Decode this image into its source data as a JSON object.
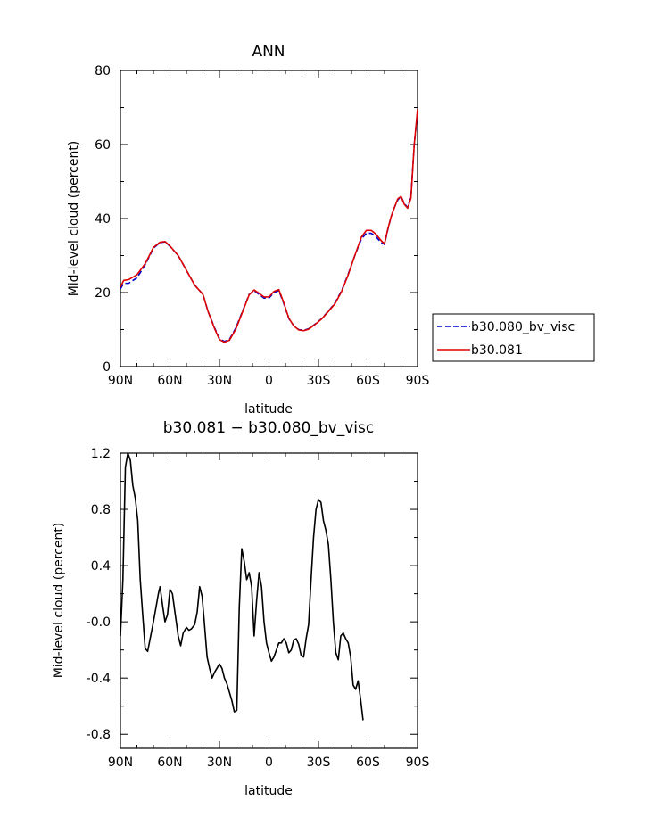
{
  "chart_data": [
    {
      "type": "line",
      "title": "ANN",
      "xlabel": "latitude",
      "ylabel": "Mid-level cloud (percent)",
      "x_ticks": [
        "90N",
        "60N",
        "30N",
        "0",
        "30S",
        "60S",
        "90S"
      ],
      "y_ticks": [
        "0",
        "20",
        "40",
        "60",
        "80"
      ],
      "ylim": [
        0,
        80
      ],
      "legend_position": "right",
      "series": [
        {
          "name": "b30.080_bv_visc",
          "color": "#0000cc",
          "dash": "dashed",
          "points": [
            [
              90,
              21
            ],
            [
              88,
              22.5
            ],
            [
              85,
              22.5
            ],
            [
              80,
              24
            ],
            [
              75,
              27.5
            ],
            [
              70,
              32
            ],
            [
              66,
              33.5
            ],
            [
              63,
              33.7
            ],
            [
              60,
              32.5
            ],
            [
              55,
              30
            ],
            [
              50,
              26
            ],
            [
              45,
              22
            ],
            [
              40,
              19.5
            ],
            [
              37,
              15
            ],
            [
              33,
              10.5
            ],
            [
              30,
              7.5
            ],
            [
              27,
              6.8
            ],
            [
              24,
              7.3
            ],
            [
              20,
              10.5
            ],
            [
              16,
              15
            ],
            [
              12,
              19.5
            ],
            [
              9,
              20.5
            ],
            [
              6,
              19.5
            ],
            [
              3,
              18.5
            ],
            [
              0,
              18.5
            ],
            [
              -3,
              20
            ],
            [
              -6,
              20.5
            ],
            [
              -9,
              17
            ],
            [
              -12,
              13
            ],
            [
              -15,
              11
            ],
            [
              -18,
              10
            ],
            [
              -21,
              9.8
            ],
            [
              -24,
              10.2
            ],
            [
              -28,
              11.5
            ],
            [
              -32,
              13
            ],
            [
              -36,
              15
            ],
            [
              -40,
              17.2
            ],
            [
              -44,
              20.5
            ],
            [
              -48,
              25
            ],
            [
              -52,
              30
            ],
            [
              -56,
              34.5
            ],
            [
              -59,
              36
            ],
            [
              -62,
              36
            ],
            [
              -65,
              35
            ],
            [
              -68,
              33.5
            ],
            [
              -70,
              33
            ],
            [
              -72,
              37
            ],
            [
              -74,
              40.5
            ],
            [
              -76,
              43
            ],
            [
              -78,
              45
            ],
            [
              -80,
              46
            ],
            [
              -82,
              44
            ],
            [
              -84,
              43
            ],
            [
              -86,
              46
            ],
            [
              -88,
              60
            ],
            [
              -90,
              69
            ]
          ]
        },
        {
          "name": "b30.081",
          "color": "#dd0000",
          "dash": "solid",
          "points": [
            [
              90,
              21.5
            ],
            [
              88,
              23.3
            ],
            [
              85,
              23.5
            ],
            [
              80,
              24.8
            ],
            [
              75,
              27.8
            ],
            [
              70,
              32.2
            ],
            [
              66,
              33.6
            ],
            [
              63,
              33.8
            ],
            [
              60,
              32.6
            ],
            [
              55,
              30
            ],
            [
              50,
              26
            ],
            [
              45,
              22
            ],
            [
              40,
              19.5
            ],
            [
              37,
              15
            ],
            [
              33,
              10.3
            ],
            [
              30,
              7.3
            ],
            [
              27,
              6.6
            ],
            [
              24,
              7.1
            ],
            [
              20,
              10.2
            ],
            [
              16,
              14.8
            ],
            [
              12,
              19.4
            ],
            [
              9,
              20.7
            ],
            [
              6,
              19.8
            ],
            [
              3,
              18.8
            ],
            [
              0,
              18.8
            ],
            [
              -3,
              20.3
            ],
            [
              -6,
              20.8
            ],
            [
              -9,
              17.2
            ],
            [
              -12,
              13.1
            ],
            [
              -15,
              11
            ],
            [
              -18,
              9.9
            ],
            [
              -21,
              9.7
            ],
            [
              -24,
              10.1
            ],
            [
              -28,
              11.4
            ],
            [
              -32,
              12.9
            ],
            [
              -36,
              14.9
            ],
            [
              -40,
              17
            ],
            [
              -44,
              20.3
            ],
            [
              -48,
              24.8
            ],
            [
              -52,
              30
            ],
            [
              -56,
              35
            ],
            [
              -59,
              36.8
            ],
            [
              -62,
              36.8
            ],
            [
              -65,
              35.7
            ],
            [
              -68,
              34
            ],
            [
              -70,
              33.2
            ],
            [
              -72,
              37.2
            ],
            [
              -74,
              40.5
            ],
            [
              -76,
              43
            ],
            [
              -78,
              45.3
            ],
            [
              -80,
              46
            ],
            [
              -82,
              43.8
            ],
            [
              -84,
              42.8
            ],
            [
              -86,
              45.5
            ],
            [
              -88,
              60
            ],
            [
              -90,
              69.5
            ]
          ]
        }
      ]
    },
    {
      "type": "line",
      "title": "b30.081 − b30.080_bv_visc",
      "xlabel": "latitude",
      "ylabel": "Mid-level cloud (percent)",
      "x_ticks": [
        "90N",
        "60N",
        "30N",
        "0",
        "30S",
        "60S",
        "90S"
      ],
      "y_ticks": [
        "-0.8",
        "-0.4",
        "-0.0",
        "0.4",
        "0.8",
        "1.2"
      ],
      "ylim": [
        -0.9,
        1.2
      ],
      "series": [
        {
          "color": "#000000",
          "dash": "solid",
          "points": [
            [
              90,
              -0.1
            ],
            [
              88.5,
              0.3
            ],
            [
              87,
              1.1
            ],
            [
              85.5,
              1.2
            ],
            [
              84,
              1.15
            ],
            [
              82.5,
              0.97
            ],
            [
              81,
              0.88
            ],
            [
              79.5,
              0.72
            ],
            [
              78,
              0.3
            ],
            [
              76.5,
              0.05
            ],
            [
              75,
              -0.19
            ],
            [
              73.5,
              -0.21
            ],
            [
              72,
              -0.12
            ],
            [
              70,
              0.0
            ],
            [
              68.5,
              0.1
            ],
            [
              67,
              0.2
            ],
            [
              66,
              0.25
            ],
            [
              64.5,
              0.12
            ],
            [
              63,
              0.0
            ],
            [
              61.5,
              0.05
            ],
            [
              60,
              0.23
            ],
            [
              58.5,
              0.2
            ],
            [
              57,
              0.07
            ],
            [
              55,
              -0.1
            ],
            [
              53.5,
              -0.17
            ],
            [
              52,
              -0.08
            ],
            [
              50,
              -0.04
            ],
            [
              48.5,
              -0.06
            ],
            [
              47,
              -0.05
            ],
            [
              45,
              -0.02
            ],
            [
              43.5,
              0.07
            ],
            [
              42,
              0.25
            ],
            [
              40.5,
              0.18
            ],
            [
              39,
              -0.03
            ],
            [
              37.5,
              -0.25
            ],
            [
              36,
              -0.33
            ],
            [
              34.5,
              -0.4
            ],
            [
              33,
              -0.36
            ],
            [
              31.5,
              -0.33
            ],
            [
              30,
              -0.3
            ],
            [
              28.5,
              -0.33
            ],
            [
              27,
              -0.4
            ],
            [
              25.5,
              -0.44
            ],
            [
              24,
              -0.5
            ],
            [
              22.5,
              -0.56
            ],
            [
              21,
              -0.64
            ],
            [
              19.5,
              -0.63
            ],
            [
              18,
              0.1
            ],
            [
              16.5,
              0.52
            ],
            [
              15,
              0.43
            ],
            [
              13.5,
              0.3
            ],
            [
              12,
              0.35
            ],
            [
              10.5,
              0.25
            ],
            [
              9,
              -0.1
            ],
            [
              7.5,
              0.15
            ],
            [
              6,
              0.35
            ],
            [
              4.5,
              0.25
            ],
            [
              3,
              0.0
            ],
            [
              1.5,
              -0.15
            ],
            [
              0,
              -0.22
            ],
            [
              -1.5,
              -0.28
            ],
            [
              -3,
              -0.25
            ],
            [
              -4.5,
              -0.2
            ],
            [
              -6,
              -0.15
            ],
            [
              -7.5,
              -0.15
            ],
            [
              -9,
              -0.12
            ],
            [
              -10.5,
              -0.15
            ],
            [
              -12,
              -0.22
            ],
            [
              -13.5,
              -0.2
            ],
            [
              -15,
              -0.13
            ],
            [
              -16.5,
              -0.12
            ],
            [
              -18,
              -0.16
            ],
            [
              -19.5,
              -0.24
            ],
            [
              -21,
              -0.25
            ],
            [
              -22.5,
              -0.12
            ],
            [
              -24,
              -0.02
            ],
            [
              -25.5,
              0.3
            ],
            [
              -27,
              0.6
            ],
            [
              -28.5,
              0.8
            ],
            [
              -30,
              0.87
            ],
            [
              -31.5,
              0.85
            ],
            [
              -33,
              0.72
            ],
            [
              -34.5,
              0.65
            ],
            [
              -36,
              0.55
            ],
            [
              -37.5,
              0.3
            ],
            [
              -39,
              0.0
            ],
            [
              -40.5,
              -0.22
            ],
            [
              -42,
              -0.27
            ],
            [
              -43.5,
              -0.1
            ],
            [
              -45,
              -0.08
            ],
            [
              -46.5,
              -0.12
            ],
            [
              -48,
              -0.15
            ],
            [
              -49.5,
              -0.25
            ],
            [
              -51,
              -0.45
            ],
            [
              -52.5,
              -0.48
            ],
            [
              -54,
              -0.42
            ],
            [
              -55.5,
              -0.55
            ],
            [
              -57,
              -0.7
            ]
          ]
        }
      ]
    }
  ]
}
